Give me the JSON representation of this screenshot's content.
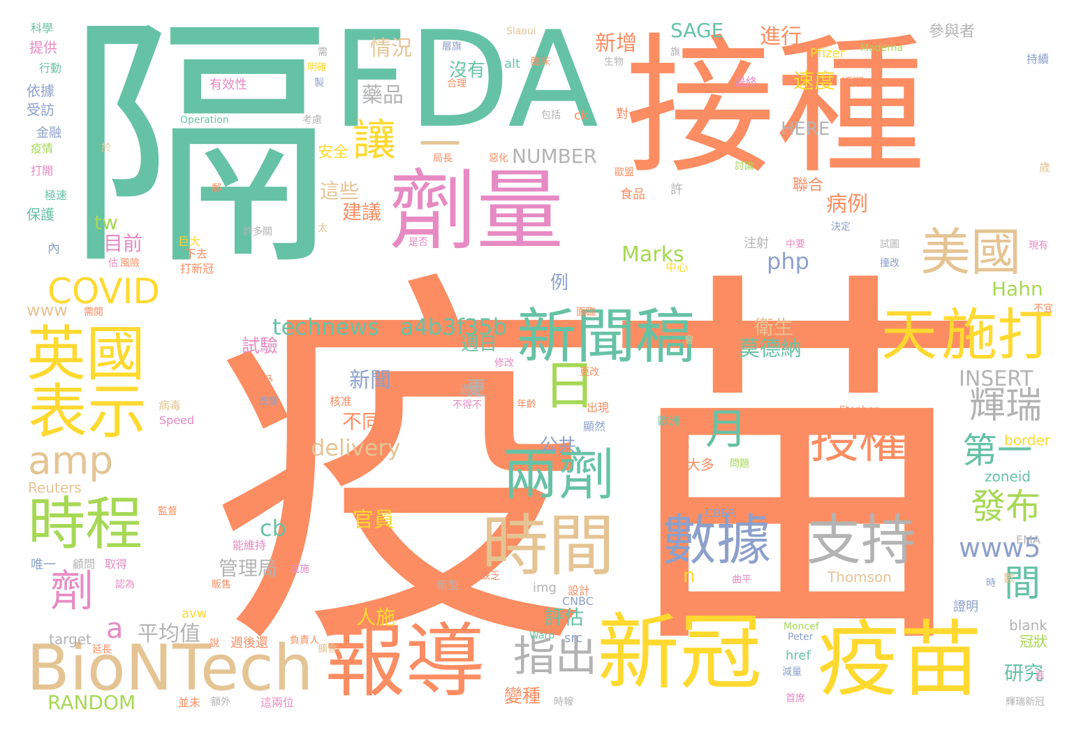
{
  "palette": {
    "orange": "#fc8d62",
    "teal": "#66c2a5",
    "yellow": "#ffd92f",
    "pink": "#e78ac3",
    "tan": "#e5c494",
    "green": "#a6d854",
    "gray": "#b3b3b3",
    "blue": "#8da0cb"
  },
  "words": [
    {
      "text": "疫苗",
      "color": "orange",
      "vertical": false
    },
    {
      "text": "隔",
      "color": "teal",
      "vertical": false
    },
    {
      "text": "接種",
      "color": "orange",
      "vertical": false
    },
    {
      "text": "FDA",
      "color": "teal",
      "vertical": false
    },
    {
      "text": "一",
      "color": "tan",
      "vertical": false
    },
    {
      "text": "劑量",
      "color": "pink",
      "vertical": false
    },
    {
      "text": "新冠",
      "color": "yellow",
      "vertical": false
    },
    {
      "text": "疫苗",
      "color": "yellow",
      "vertical": false
    },
    {
      "text": "報導",
      "color": "orange",
      "vertical": false
    },
    {
      "text": "BioNTech",
      "color": "tan",
      "vertical": false
    },
    {
      "text": "時間",
      "color": "tan",
      "vertical": false
    },
    {
      "text": "兩劑",
      "color": "teal",
      "vertical": false
    },
    {
      "text": "新聞稿",
      "color": "teal",
      "vertical": false
    },
    {
      "text": "天",
      "color": "yellow",
      "vertical": false
    },
    {
      "text": "施打",
      "color": "yellow",
      "vertical": false
    },
    {
      "text": "英國",
      "color": "yellow",
      "vertical": false
    },
    {
      "text": "表示",
      "color": "yellow",
      "vertical": false
    },
    {
      "text": "時程",
      "color": "green",
      "vertical": false
    },
    {
      "text": "美國",
      "color": "tan",
      "vertical": false
    },
    {
      "text": "數據",
      "color": "blue",
      "vertical": false
    },
    {
      "text": "支持",
      "color": "gray",
      "vertical": false
    },
    {
      "text": "授權",
      "color": "orange",
      "vertical": false
    },
    {
      "text": "日",
      "color": "green",
      "vertical": false
    },
    {
      "text": "月",
      "color": "teal",
      "vertical": false
    },
    {
      "text": "COVID",
      "color": "yellow",
      "vertical": false
    },
    {
      "text": "amp",
      "color": "tan",
      "vertical": false
    },
    {
      "text": "讓",
      "color": "yellow",
      "vertical": false
    },
    {
      "text": "劑",
      "color": "pink",
      "vertical": false
    },
    {
      "text": "輝瑞",
      "color": "gray",
      "vertical": false
    },
    {
      "text": "發布",
      "color": "green",
      "vertical": false
    },
    {
      "text": "間",
      "color": "teal",
      "vertical": false
    },
    {
      "text": "第一",
      "color": "teal",
      "vertical": false
    },
    {
      "text": "指出",
      "color": "gray",
      "vertical": false
    },
    {
      "text": "technews",
      "color": "teal",
      "vertical": false
    },
    {
      "text": "a4b3f35b",
      "color": "teal",
      "vertical": false
    },
    {
      "text": "delivery",
      "color": "tan",
      "vertical": false
    },
    {
      "text": "a",
      "color": "pink",
      "vertical": false
    },
    {
      "text": "www5",
      "color": "blue",
      "vertical": false
    },
    {
      "text": "INSERT",
      "color": "gray",
      "vertical": false
    },
    {
      "text": "SAGE",
      "color": "teal",
      "vertical": false
    },
    {
      "text": "NUMBER",
      "color": "gray",
      "vertical": false
    },
    {
      "text": "HERE",
      "color": "gray",
      "vertical": false
    },
    {
      "text": "Marks",
      "color": "green",
      "vertical": false
    },
    {
      "text": "Hahn",
      "color": "green",
      "vertical": false
    },
    {
      "text": "php",
      "color": "blue",
      "vertical": false
    },
    {
      "text": "tw",
      "color": "green",
      "vertical": false
    },
    {
      "text": "cb",
      "color": "teal",
      "vertical": false
    },
    {
      "text": "n",
      "color": "yellow",
      "vertical": false
    },
    {
      "text": "www",
      "color": "tan",
      "vertical": false
    },
    {
      "text": "RANDOM",
      "color": "green",
      "vertical": false
    },
    {
      "text": "Reuters",
      "color": "tan",
      "vertical": false
    },
    {
      "text": "target",
      "color": "gray",
      "vertical": false
    },
    {
      "text": "Thomson",
      "color": "tan",
      "vertical": false
    },
    {
      "text": "blank",
      "color": "gray",
      "vertical": false
    },
    {
      "text": "zoneid",
      "color": "teal",
      "vertical": false
    },
    {
      "text": "border",
      "color": "yellow",
      "vertical": false
    },
    {
      "text": "EMA",
      "color": "gray",
      "vertical": false
    },
    {
      "text": "CBER",
      "color": "blue",
      "vertical": false
    },
    {
      "text": "CNBC",
      "color": "blue",
      "vertical": false
    },
    {
      "text": "Pfizer",
      "color": "yellow",
      "vertical": false
    },
    {
      "text": "Moderna",
      "color": "green",
      "vertical": false
    },
    {
      "text": "Slaoui",
      "color": "tan",
      "vertical": false
    },
    {
      "text": "Operation",
      "color": "teal",
      "vertical": false
    },
    {
      "text": "Stephen",
      "color": "orange",
      "vertical": false
    },
    {
      "text": "Speed",
      "color": "pink",
      "vertical": false
    },
    {
      "text": "Warp",
      "color": "teal",
      "vertical": false
    },
    {
      "text": "Moncef",
      "color": "green",
      "vertical": false
    },
    {
      "text": "Peter",
      "color": "blue",
      "vertical": false
    },
    {
      "text": "alt",
      "color": "teal",
      "vertical": false
    },
    {
      "text": "ck",
      "color": "orange",
      "vertical": false
    },
    {
      "text": "img",
      "color": "gray",
      "vertical": false
    },
    {
      "text": "avw",
      "color": "yellow",
      "vertical": false
    },
    {
      "text": "src",
      "color": "blue",
      "vertical": false
    },
    {
      "text": "href",
      "color": "teal",
      "vertical": false
    },
    {
      "text": "情況",
      "color": "tan",
      "vertical": false
    },
    {
      "text": "藥品",
      "color": "gray",
      "vertical": false
    },
    {
      "text": "沒有",
      "color": "teal",
      "vertical": false
    },
    {
      "text": "新增",
      "color": "orange",
      "vertical": false
    },
    {
      "text": "進行",
      "color": "orange",
      "vertical": false
    },
    {
      "text": "參與者",
      "color": "gray",
      "vertical": false
    },
    {
      "text": "速度",
      "color": "yellow",
      "vertical": false
    },
    {
      "text": "安全",
      "color": "yellow",
      "vertical": false
    },
    {
      "text": "這些",
      "color": "tan",
      "vertical": false
    },
    {
      "text": "建議",
      "color": "orange",
      "vertical": false
    },
    {
      "text": "病例",
      "color": "orange",
      "vertical": false
    },
    {
      "text": "聯合",
      "color": "orange",
      "vertical": false
    },
    {
      "text": "目前",
      "color": "pink",
      "vertical": false
    },
    {
      "text": "例",
      "color": "blue",
      "vertical": false
    },
    {
      "text": "衛生",
      "color": "tan",
      "vertical": false
    },
    {
      "text": "莫德納",
      "color": "teal",
      "vertical": false
    },
    {
      "text": "試驗",
      "color": "pink",
      "vertical": false
    },
    {
      "text": "週日",
      "color": "teal",
      "vertical": false
    },
    {
      "text": "新聞",
      "color": "blue",
      "vertical": false
    },
    {
      "text": "更",
      "color": "gray",
      "vertical": false
    },
    {
      "text": "不同",
      "color": "orange",
      "vertical": false
    },
    {
      "text": "公共",
      "color": "blue",
      "vertical": false
    },
    {
      "text": "官員",
      "color": "yellow",
      "vertical": false
    },
    {
      "text": "管理局",
      "color": "gray",
      "vertical": false
    },
    {
      "text": "人施",
      "color": "yellow",
      "vertical": false
    },
    {
      "text": "平均值",
      "color": "gray",
      "vertical": false
    },
    {
      "text": "評估",
      "color": "teal",
      "vertical": false
    },
    {
      "text": "變種",
      "color": "orange",
      "vertical": false
    },
    {
      "text": "研究",
      "color": "teal",
      "vertical": false
    },
    {
      "text": "冠狀",
      "color": "green",
      "vertical": false
    },
    {
      "text": "提供",
      "color": "pink",
      "vertical": false
    },
    {
      "text": "科學",
      "color": "teal",
      "vertical": false
    },
    {
      "text": "行動",
      "color": "teal",
      "vertical": false
    },
    {
      "text": "依據",
      "color": "blue",
      "vertical": false
    },
    {
      "text": "受訪",
      "color": "blue",
      "vertical": false
    },
    {
      "text": "金融",
      "color": "blue",
      "vertical": false
    },
    {
      "text": "疫情",
      "color": "green",
      "vertical": false
    },
    {
      "text": "打開",
      "color": "pink",
      "vertical": false
    },
    {
      "text": "極速",
      "color": "teal",
      "vertical": false
    },
    {
      "text": "保護",
      "color": "teal",
      "vertical": false
    },
    {
      "text": "內",
      "color": "blue",
      "vertical": false
    },
    {
      "text": "有效性",
      "color": "pink",
      "vertical": false
    },
    {
      "text": "需",
      "color": "gray",
      "vertical": false
    },
    {
      "text": "層旗",
      "color": "blue",
      "vertical": false
    },
    {
      "text": "明確",
      "color": "yellow",
      "vertical": false
    },
    {
      "text": "合理",
      "color": "orange",
      "vertical": false
    },
    {
      "text": "製",
      "color": "blue",
      "vertical": false
    },
    {
      "text": "考慮",
      "color": "gray",
      "vertical": false
    },
    {
      "text": "於",
      "color": "tan",
      "vertical": false
    },
    {
      "text": "巨大",
      "color": "yellow",
      "vertical": false
    },
    {
      "text": "下去",
      "color": "orange",
      "vertical": false
    },
    {
      "text": "打新冠",
      "color": "orange",
      "vertical": false
    },
    {
      "text": "估",
      "color": "pink",
      "vertical": false
    },
    {
      "text": "風險",
      "color": "orange",
      "vertical": false
    },
    {
      "text": "許多關",
      "color": "gray",
      "vertical": false
    },
    {
      "text": "太",
      "color": "tan",
      "vertical": false
    },
    {
      "text": "郵",
      "color": "orange",
      "vertical": false
    },
    {
      "text": "需閱",
      "color": "orange",
      "vertical": false
    },
    {
      "text": "病毒",
      "color": "tan",
      "vertical": false
    },
    {
      "text": "接受",
      "color": "orange",
      "vertical": false
    },
    {
      "text": "改變",
      "color": "blue",
      "vertical": false
    },
    {
      "text": "能維持",
      "color": "pink",
      "vertical": false
    },
    {
      "text": "唯一",
      "color": "blue",
      "vertical": false
    },
    {
      "text": "顧問",
      "color": "gray",
      "vertical": false
    },
    {
      "text": "取得",
      "color": "pink",
      "vertical": false
    },
    {
      "text": "認為",
      "color": "pink",
      "vertical": false
    },
    {
      "text": "監督",
      "color": "orange",
      "vertical": false
    },
    {
      "text": "販售",
      "color": "orange",
      "vertical": false
    },
    {
      "text": "或施",
      "color": "pink",
      "vertical": false
    },
    {
      "text": "新型",
      "color": "gray",
      "vertical": false
    },
    {
      "text": "缺乏",
      "color": "orange",
      "vertical": false
    },
    {
      "text": "設計",
      "color": "orange",
      "vertical": false
    },
    {
      "text": "週後還",
      "color": "orange",
      "vertical": false
    },
    {
      "text": "負責人",
      "color": "orange",
      "vertical": false
    },
    {
      "text": "擴會",
      "color": "tan",
      "vertical": false
    },
    {
      "text": "並未",
      "color": "orange",
      "vertical": false
    },
    {
      "text": "額外",
      "color": "gray",
      "vertical": false
    },
    {
      "text": "這兩位",
      "color": "pink",
      "vertical": false
    },
    {
      "text": "時報",
      "color": "gray",
      "vertical": false
    },
    {
      "text": "延長",
      "color": "orange",
      "vertical": false
    },
    {
      "text": "說",
      "color": "orange",
      "vertical": false
    },
    {
      "text": "首席",
      "color": "pink",
      "vertical": false
    },
    {
      "text": "減量",
      "color": "blue",
      "vertical": false
    },
    {
      "text": "輝瑞新冠",
      "color": "gray",
      "vertical": false
    },
    {
      "text": "進",
      "color": "pink",
      "vertical": false
    },
    {
      "text": "證明",
      "color": "blue",
      "vertical": false
    },
    {
      "text": "時",
      "color": "blue",
      "vertical": false
    },
    {
      "text": "數",
      "color": "tan",
      "vertical": false
    },
    {
      "text": "曲平",
      "color": "pink",
      "vertical": false
    },
    {
      "text": "問題",
      "color": "green",
      "vertical": false
    },
    {
      "text": "大多",
      "color": "orange",
      "vertical": false
    },
    {
      "text": "指定",
      "color": "orange",
      "vertical": false
    },
    {
      "text": "歐洲",
      "color": "teal",
      "vertical": false
    },
    {
      "text": "顯然",
      "color": "blue",
      "vertical": false
    },
    {
      "text": "出現",
      "color": "orange",
      "vertical": false
    },
    {
      "text": "更改",
      "color": "orange",
      "vertical": false
    },
    {
      "text": "年齡",
      "color": "orange",
      "vertical": false
    },
    {
      "text": "不得不",
      "color": "pink",
      "vertical": false
    },
    {
      "text": "核准",
      "color": "orange",
      "vertical": false
    },
    {
      "text": "過程",
      "color": "gray",
      "vertical": false
    },
    {
      "text": "修改",
      "color": "pink",
      "vertical": false
    },
    {
      "text": "會",
      "color": "tan",
      "vertical": false
    },
    {
      "text": "面臨",
      "color": "orange",
      "vertical": false
    },
    {
      "text": "不宜",
      "color": "orange",
      "vertical": false
    },
    {
      "text": "中心",
      "color": "yellow",
      "vertical": false
    },
    {
      "text": "中要",
      "color": "pink",
      "vertical": false
    },
    {
      "text": "注射",
      "color": "gray",
      "vertical": false
    },
    {
      "text": "是否",
      "color": "pink",
      "vertical": false
    },
    {
      "text": "試圖",
      "color": "gray",
      "vertical": false
    },
    {
      "text": "撞改",
      "color": "blue",
      "vertical": false
    },
    {
      "text": "現有",
      "color": "pink",
      "vertical": false
    },
    {
      "text": "決定",
      "color": "blue",
      "vertical": false
    },
    {
      "text": "許",
      "color": "gray",
      "vertical": false
    },
    {
      "text": "食品",
      "color": "orange",
      "vertical": false
    },
    {
      "text": "歐盟",
      "color": "orange",
      "vertical": false
    },
    {
      "text": "局長",
      "color": "orange",
      "vertical": false
    },
    {
      "text": "惡化",
      "color": "orange",
      "vertical": false
    },
    {
      "text": "討論",
      "color": "green",
      "vertical": false
    },
    {
      "text": "歲",
      "color": "tan",
      "vertical": false
    },
    {
      "text": "對",
      "color": "orange",
      "vertical": false
    },
    {
      "text": "包括",
      "color": "gray",
      "vertical": false
    },
    {
      "text": "生物",
      "color": "gray",
      "vertical": false
    },
    {
      "text": "最終",
      "color": "pink",
      "vertical": false
    },
    {
      "text": "近期",
      "color": "orange",
      "vertical": false
    },
    {
      "text": "持續",
      "color": "blue",
      "vertical": false
    },
    {
      "text": "臨床",
      "color": "orange",
      "vertical": false
    },
    {
      "text": "旗",
      "color": "gray",
      "vertical": false
    }
  ]
}
